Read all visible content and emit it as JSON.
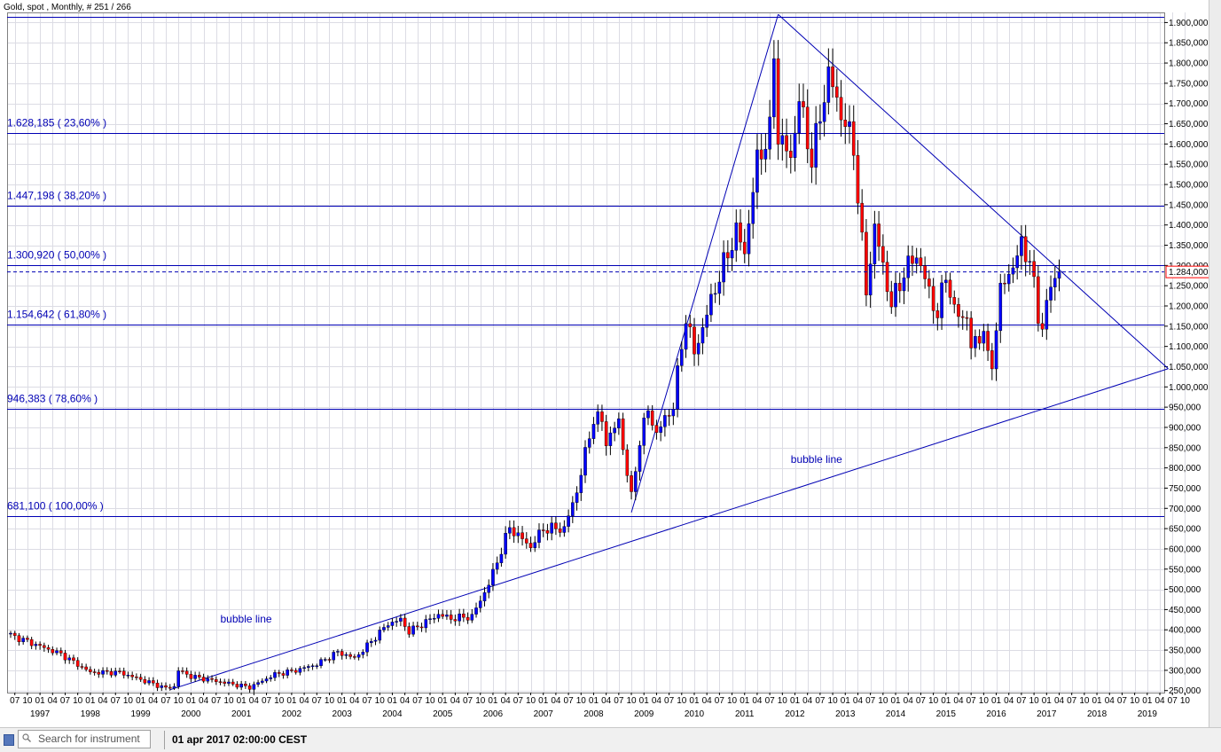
{
  "chart_data": {
    "type": "candlestick",
    "title": "Gold, spot , Monthly, # 251 / 266",
    "price_axis": {
      "ylim": [
        245000,
        1925000
      ],
      "tick_labels": [
        "250,000",
        "300,000",
        "350,000",
        "400,000",
        "450,000",
        "500,000",
        "550,000",
        "600,000",
        "650,000",
        "700,000",
        "750,000",
        "800,000",
        "850,000",
        "900,000",
        "950,000",
        "1.000,000",
        "1.050,000",
        "1.100,000",
        "1.150,000",
        "1.200,000",
        "1.250,000",
        "1.300,000",
        "1.350,000",
        "1.400,000",
        "1.450,000",
        "1.500,000",
        "1.550,000",
        "1.600,000",
        "1.650,000",
        "1.700,000",
        "1.750,000",
        "1.800,000",
        "1.850,000",
        "1.900,000"
      ],
      "tick_values": [
        250000,
        300000,
        350000,
        400000,
        450000,
        500000,
        550000,
        600000,
        650000,
        700000,
        750000,
        800000,
        850000,
        900000,
        950000,
        1000000,
        1050000,
        1100000,
        1150000,
        1200000,
        1250000,
        1300000,
        1350000,
        1400000,
        1450000,
        1500000,
        1550000,
        1600000,
        1650000,
        1700000,
        1750000,
        1800000,
        1850000,
        1900000
      ]
    },
    "time_axis": {
      "start": "1996-06",
      "end": "2019-12",
      "year_labels": [
        "1997",
        "1998",
        "1999",
        "2000",
        "2001",
        "2002",
        "2003",
        "2004",
        "2005",
        "2006",
        "2007",
        "2008",
        "2009",
        "2010",
        "2011",
        "2012",
        "2013",
        "2014",
        "2015",
        "2016",
        "2017",
        "2018",
        "2019"
      ],
      "month_tick_labels": [
        "01",
        "04",
        "07",
        "10"
      ]
    },
    "current_price": {
      "value": 1284000,
      "label": "1.284,000"
    },
    "fib_levels": [
      {
        "value": 1915000,
        "label": ""
      },
      {
        "value": 1628185,
        "label": "1.628,185  ( 23,60% )"
      },
      {
        "value": 1447198,
        "label": "1.447,198  ( 38,20% )"
      },
      {
        "value": 1300920,
        "label": "1.300,920  ( 50,00% )"
      },
      {
        "value": 1154642,
        "label": "1.154,642  ( 61,80% )"
      },
      {
        "value": 946383,
        "label": "946,383  ( 78,60% )"
      },
      {
        "value": 681100,
        "label": "681,100  ( 100,00% )"
      }
    ],
    "trendlines": [
      {
        "from": [
          "1999-08",
          252000
        ],
        "to": [
          "2019-06",
          1045000
        ]
      },
      {
        "from": [
          "2008-10",
          690000
        ],
        "to": [
          "2011-09",
          1920000
        ]
      },
      {
        "from": [
          "2011-09",
          1920000
        ],
        "to": [
          "2019-06",
          1045000
        ]
      }
    ],
    "annotations": [
      {
        "text": "bubble line",
        "at": [
          "2000-08",
          418000
        ]
      },
      {
        "text": "bubble line",
        "at": [
          "2011-12",
          812000
        ]
      }
    ],
    "waypoints": [
      [
        "1996-06",
        387000
      ],
      [
        "1997-06",
        340000
      ],
      [
        "1998-01",
        295000
      ],
      [
        "1998-08",
        295000
      ],
      [
        "1999-07",
        256000
      ],
      [
        "1999-09",
        260000
      ],
      [
        "1999-10",
        300000
      ],
      [
        "2000-01",
        285000
      ],
      [
        "2001-03",
        258000
      ],
      [
        "2001-09",
        290000
      ],
      [
        "2002-02",
        300000
      ],
      [
        "2002-07",
        315000
      ],
      [
        "2002-12",
        345000
      ],
      [
        "2003-04",
        330000
      ],
      [
        "2003-06",
        350000
      ],
      [
        "2003-12",
        415000
      ],
      [
        "2004-03",
        425000
      ],
      [
        "2004-05",
        395000
      ],
      [
        "2004-12",
        438000
      ],
      [
        "2005-03",
        428000
      ],
      [
        "2005-08",
        433000
      ],
      [
        "2005-12",
        513000
      ],
      [
        "2006-05",
        653000
      ],
      [
        "2006-07",
        633000
      ],
      [
        "2006-10",
        605000
      ],
      [
        "2007-01",
        650000
      ],
      [
        "2007-06",
        650000
      ],
      [
        "2007-09",
        743000
      ],
      [
        "2008-01",
        924000
      ],
      [
        "2008-03",
        915000
      ],
      [
        "2008-04",
        865000
      ],
      [
        "2008-07",
        915000
      ],
      [
        "2008-10",
        725000
      ],
      [
        "2008-12",
        870000
      ],
      [
        "2009-02",
        942000
      ],
      [
        "2009-04",
        885000
      ],
      [
        "2009-08",
        955000
      ],
      [
        "2009-11",
        1175000
      ],
      [
        "2010-01",
        1082000
      ],
      [
        "2010-06",
        1245000
      ],
      [
        "2010-11",
        1385000
      ],
      [
        "2011-01",
        1332000
      ],
      [
        "2011-04",
        1560000
      ],
      [
        "2011-07",
        1628000
      ],
      [
        "2011-08",
        1825000
      ],
      [
        "2011-09",
        1620000
      ],
      [
        "2011-12",
        1565000
      ],
      [
        "2012-02",
        1710000
      ],
      [
        "2012-05",
        1560000
      ],
      [
        "2012-09",
        1775000
      ],
      [
        "2012-12",
        1675000
      ],
      [
        "2013-03",
        1595000
      ],
      [
        "2013-04",
        1470000
      ],
      [
        "2013-06",
        1235000
      ],
      [
        "2013-08",
        1395000
      ],
      [
        "2013-12",
        1202000
      ],
      [
        "2014-03",
        1283000
      ],
      [
        "2014-06",
        1327000
      ],
      [
        "2014-11",
        1175000
      ],
      [
        "2015-01",
        1283000
      ],
      [
        "2015-03",
        1183000
      ],
      [
        "2015-06",
        1172000
      ],
      [
        "2015-07",
        1095000
      ],
      [
        "2015-10",
        1142000
      ],
      [
        "2015-11",
        1065000
      ],
      [
        "2015-12",
        1060000
      ],
      [
        "2016-02",
        1238000
      ],
      [
        "2016-06",
        1322000
      ],
      [
        "2016-07",
        1351000
      ],
      [
        "2016-09",
        1315000
      ],
      [
        "2016-11",
        1173000
      ],
      [
        "2016-12",
        1151000
      ],
      [
        "2017-02",
        1249000
      ],
      [
        "2017-04",
        1284000
      ]
    ]
  },
  "status_bar": {
    "search_placeholder": "Search for instrument",
    "date_text": "01 apr 2017 02:00:00 CEST"
  }
}
